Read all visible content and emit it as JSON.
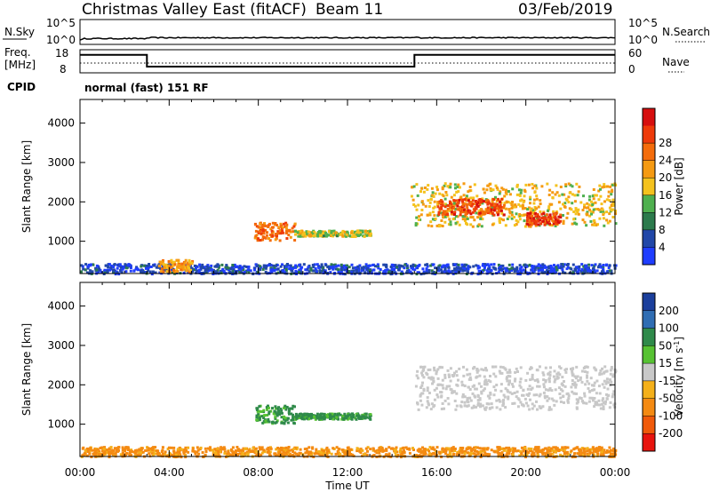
{
  "header": {
    "station": "Christmas Valley East (fitACF)",
    "beam": "Beam 11",
    "date": "03/Feb/2019"
  },
  "noise_panel": {
    "left_label": "N.Sky",
    "right_label": "N.Search",
    "left_ticks": [
      "10^5",
      "10^0"
    ],
    "right_ticks": [
      "10^5",
      "10^0"
    ]
  },
  "freq_panel": {
    "left_label_line1": "Freq.",
    "left_label_line2": "[MHz]",
    "right_label": "Nave",
    "left_ticks": [
      "18",
      "8"
    ],
    "right_ticks": [
      "60",
      "0"
    ]
  },
  "cpid": {
    "label": "CPID",
    "value": "normal (fast) 151 RF"
  },
  "axes": {
    "ylabel": "Slant Range [km]",
    "yticks": [
      "1000",
      "2000",
      "3000",
      "4000"
    ],
    "xticks": [
      "00:00",
      "04:00",
      "08:00",
      "12:00",
      "16:00",
      "20:00",
      "00:00"
    ],
    "xlabel": "Time UT"
  },
  "power_colorbar": {
    "label": "Power [dB]",
    "ticks": [
      "4",
      "8",
      "12",
      "16",
      "20",
      "24",
      "28"
    ],
    "colors": [
      "#1f3dff",
      "#2147a8",
      "#2c7a4c",
      "#4fb04f",
      "#f4c21e",
      "#f59a12",
      "#f46c0b",
      "#ee3a0a",
      "#d60f0f"
    ]
  },
  "velocity_colorbar": {
    "label_main": "Velocity [m s",
    "label_sup": "-1",
    "label_end": "]",
    "ticks": [
      "200",
      "100",
      "50",
      "15",
      "-15",
      "-50",
      "-100",
      "-200"
    ],
    "colors": [
      "#1b3f9c",
      "#2f6db3",
      "#2f8a4a",
      "#57c233",
      "#c8c8c8",
      "#f4b01a",
      "#f48a12",
      "#f05a0a",
      "#e8140e"
    ]
  },
  "chart_data": [
    {
      "type": "line",
      "name": "noise",
      "x_unit": "hours UT",
      "x": [
        0,
        0.2,
        3,
        3.1,
        15,
        15.2,
        24
      ],
      "values_log10": [
        0.7,
        0.95,
        0.95,
        1.15,
        1.25,
        1.15,
        1.2
      ]
    },
    {
      "type": "line",
      "name": "frequency",
      "x_unit": "hours UT",
      "x": [
        0,
        3,
        3,
        15,
        15,
        24
      ],
      "values": [
        16,
        16,
        10.5,
        10.5,
        16,
        16
      ],
      "ylim": [
        8,
        18
      ]
    },
    {
      "type": "heatmap",
      "title": "Power [dB]",
      "xlabel": "Time UT",
      "ylabel": "Slant Range [km]",
      "xlim": [
        0,
        24
      ],
      "ylim": [
        180,
        4600
      ],
      "regions": [
        {
          "t": [
            0,
            24
          ],
          "r": [
            200,
            450
          ],
          "level": 4
        },
        {
          "t": [
            3.5,
            5.0
          ],
          "r": [
            250,
            550
          ],
          "level": 18
        },
        {
          "t": [
            7.8,
            9.6
          ],
          "r": [
            1050,
            1500
          ],
          "level": 22
        },
        {
          "t": [
            9.6,
            13.0
          ],
          "r": [
            1150,
            1300
          ],
          "level": 14
        },
        {
          "t": [
            14.8,
            24
          ],
          "r": [
            1400,
            2500
          ],
          "level": 16
        },
        {
          "t": [
            16,
            19
          ],
          "r": [
            1700,
            2100
          ],
          "level": 24
        },
        {
          "t": [
            20,
            21.5
          ],
          "r": [
            1450,
            1750
          ],
          "level": 26
        }
      ]
    },
    {
      "type": "heatmap",
      "title": "Velocity [m s-1]",
      "xlabel": "Time UT",
      "ylabel": "Slant Range [km]",
      "xlim": [
        0,
        24
      ],
      "ylim": [
        180,
        4600
      ],
      "regions": [
        {
          "t": [
            0,
            24
          ],
          "r": [
            200,
            450
          ],
          "velocity": -40
        },
        {
          "t": [
            7.8,
            9.6
          ],
          "r": [
            1050,
            1500
          ],
          "velocity": 40
        },
        {
          "t": [
            9.6,
            13.0
          ],
          "r": [
            1150,
            1300
          ],
          "velocity": 40
        },
        {
          "t": [
            15,
            24
          ],
          "r": [
            1400,
            2500
          ],
          "velocity": 0
        }
      ]
    }
  ]
}
